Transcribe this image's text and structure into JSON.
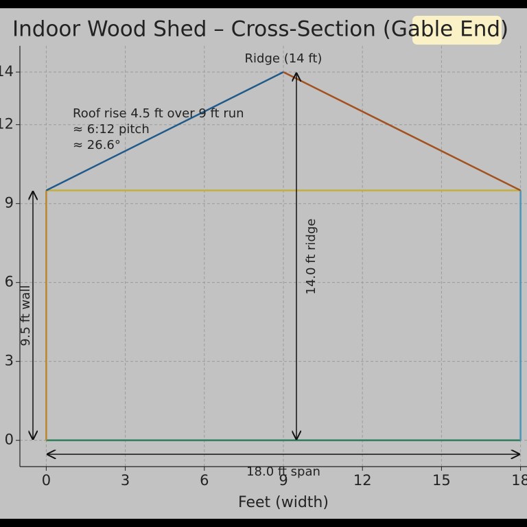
{
  "chart_data": {
    "type": "line",
    "title": "Indoor Wood Shed – Cross-Section (Gable End)",
    "x_label": "Feet (width)",
    "xlim": [
      -1,
      19
    ],
    "xticks": [
      0,
      3,
      6,
      9,
      12,
      15,
      18
    ],
    "ylim": [
      -1,
      15
    ],
    "yticks": [
      0,
      3,
      6,
      9,
      12,
      14
    ],
    "grid": true,
    "series": [
      {
        "color": "#2e7d5b",
        "x": [
          0,
          18
        ],
        "values": [
          0,
          0
        ]
      },
      {
        "color": "#b8862b",
        "x": [
          0,
          0
        ],
        "values": [
          0,
          9.5
        ]
      },
      {
        "color": "#4f93b8",
        "x": [
          18,
          18
        ],
        "values": [
          0,
          9.5
        ]
      },
      {
        "color": "#c4ae3c",
        "x": [
          0,
          18
        ],
        "values": [
          9.5,
          9.5
        ]
      },
      {
        "color": "#1f5a8a",
        "x": [
          0,
          9
        ],
        "values": [
          9.5,
          14
        ]
      },
      {
        "color": "#a3521f",
        "x": [
          9,
          18
        ],
        "values": [
          14,
          9.5
        ]
      }
    ],
    "annotations": {
      "ridge": "Ridge (14 ft)",
      "pitch": [
        "Roof rise 4.5 ft over 9 ft run",
        "≈ 6:12 pitch",
        "≈ 26.6°"
      ],
      "wall": "9.5 ft wall",
      "ridge_height": "14.0 ft ridge",
      "span": "18.0 ft span"
    }
  }
}
